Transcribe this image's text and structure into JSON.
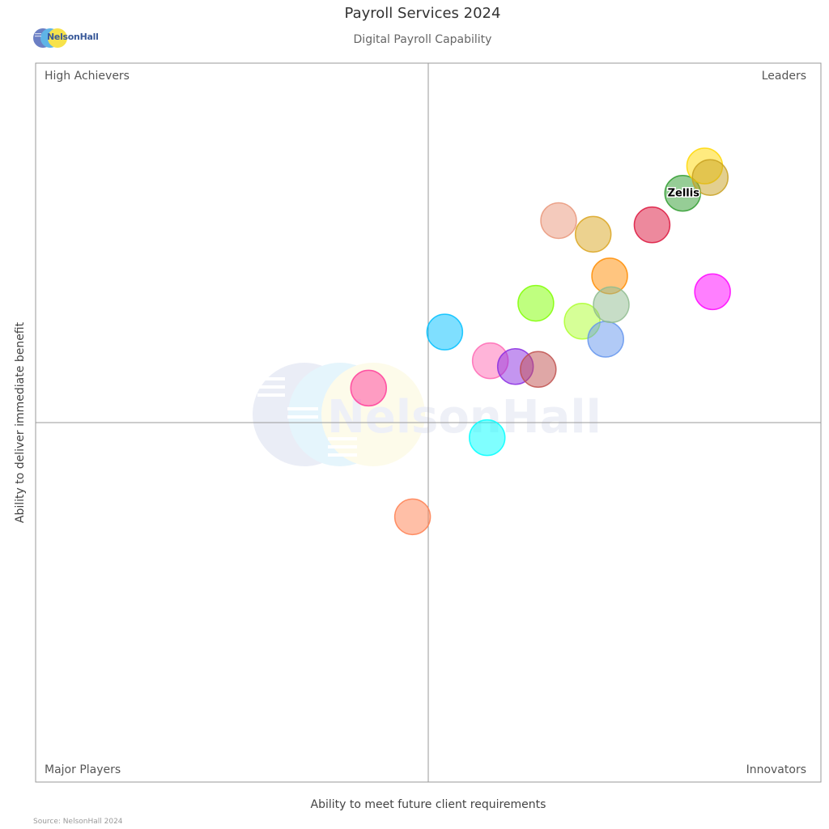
{
  "header": {
    "title": "Payroll Services 2024",
    "subtitle": "Digital Payroll Capability",
    "logo_text": "NelsonHall"
  },
  "footer": {
    "source": "Source: NelsonHall 2024"
  },
  "watermark": {
    "text": "NelsonHall"
  },
  "chart_data": {
    "type": "scatter",
    "title": "Payroll Services 2024",
    "subtitle": "Digital Payroll Capability",
    "xlabel": "Ability to meet future client requirements",
    "ylabel": "Ability to deliver immediate benefit",
    "xlim": [
      0,
      10
    ],
    "ylim": [
      0,
      10
    ],
    "midpoint": {
      "x": 5,
      "y": 5
    },
    "grid": false,
    "quadrants": {
      "top_left": "High Achievers",
      "top_right": "Leaders",
      "bottom_left": "Major Players",
      "bottom_right": "Innovators"
    },
    "points": [
      {
        "label": "",
        "x": 4.24,
        "y": 5.48,
        "color": "#ff3d9a"
      },
      {
        "label": "",
        "x": 4.8,
        "y": 3.69,
        "color": "#ff7f50"
      },
      {
        "label": "",
        "x": 5.21,
        "y": 6.26,
        "color": "#00bfff"
      },
      {
        "label": "",
        "x": 5.75,
        "y": 4.79,
        "color": "#00ffff"
      },
      {
        "label": "",
        "x": 5.79,
        "y": 5.86,
        "color": "#ff69b4"
      },
      {
        "label": "",
        "x": 6.11,
        "y": 5.78,
        "color": "#8a2be2"
      },
      {
        "label": "",
        "x": 6.4,
        "y": 5.74,
        "color": "#c0504d"
      },
      {
        "label": "",
        "x": 6.37,
        "y": 6.66,
        "color": "#7fff00"
      },
      {
        "label": "",
        "x": 6.66,
        "y": 7.81,
        "color": "#e9967a"
      },
      {
        "label": "",
        "x": 6.96,
        "y": 6.41,
        "color": "#adff2f"
      },
      {
        "label": "",
        "x": 7.1,
        "y": 7.62,
        "color": "#daa520"
      },
      {
        "label": "",
        "x": 7.26,
        "y": 6.16,
        "color": "#6495ed"
      },
      {
        "label": "",
        "x": 7.31,
        "y": 7.04,
        "color": "#ff8c00"
      },
      {
        "label": "",
        "x": 7.33,
        "y": 6.64,
        "color": "#8fbc8f"
      },
      {
        "label": "",
        "x": 7.85,
        "y": 7.75,
        "color": "#dc143c"
      },
      {
        "label": "Zellis",
        "x": 8.24,
        "y": 8.19,
        "color": "#2e9b2e"
      },
      {
        "label": "",
        "x": 8.52,
        "y": 8.57,
        "color": "#ffd700"
      },
      {
        "label": "",
        "x": 8.59,
        "y": 8.41,
        "color": "#c8a020"
      },
      {
        "label": "",
        "x": 8.62,
        "y": 6.82,
        "color": "#ff00ff"
      }
    ]
  }
}
